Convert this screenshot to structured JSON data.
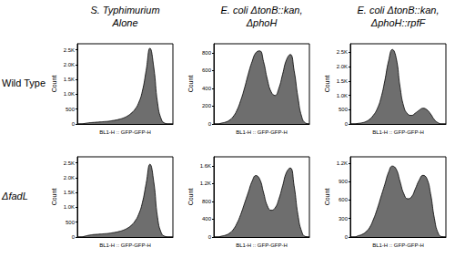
{
  "column_titles": [
    [
      "S. Typhimurium",
      "Alone"
    ],
    [
      "E. coli ΔtonB::kan,",
      "ΔphoH"
    ],
    [
      "E. coli ΔtonB::kan,",
      "ΔphoH::rpfF"
    ]
  ],
  "row_labels": [
    "Wild Type",
    "ΔfadL"
  ],
  "chart_data": [
    {
      "type": "area",
      "color": "#6e6e6e",
      "xlabel": "BL1-H :: GFP-GFP-H",
      "ylabel": "Count",
      "tick_labels": "y",
      "x": [
        0,
        4,
        8,
        12,
        16,
        20,
        24,
        28,
        32,
        36,
        40,
        44,
        48,
        52,
        56,
        60,
        64,
        68,
        72,
        76,
        80,
        84,
        88,
        92,
        96,
        100
      ],
      "values": [
        0,
        0,
        20,
        40,
        50,
        60,
        70,
        80,
        90,
        110,
        130,
        160,
        200,
        260,
        350,
        480,
        700,
        1100,
        1800,
        2550,
        1900,
        700,
        150,
        20,
        0,
        0
      ],
      "xlim": [
        0,
        100
      ],
      "ylim": [
        0,
        2700
      ],
      "yticks": [
        0,
        500,
        {
          "value": 1000,
          "label": "1.0K"
        },
        {
          "value": 1500,
          "label": "1.5K"
        },
        {
          "value": 2000,
          "label": "2.0K"
        },
        {
          "value": 2500,
          "label": "2.5K"
        }
      ]
    },
    {
      "type": "area",
      "color": "#6e6e6e",
      "xlabel": "BL1-H :: GFP-GFP-H",
      "ylabel": "Count",
      "tick_labels": "y",
      "x": [
        0,
        4,
        8,
        12,
        16,
        20,
        24,
        28,
        32,
        36,
        40,
        44,
        48,
        52,
        56,
        60,
        64,
        68,
        72,
        76,
        80,
        84,
        88,
        92,
        96,
        100
      ],
      "values": [
        0,
        0,
        10,
        20,
        40,
        80,
        150,
        260,
        400,
        560,
        700,
        800,
        820,
        700,
        500,
        360,
        320,
        400,
        560,
        720,
        780,
        600,
        300,
        80,
        10,
        0
      ],
      "xlim": [
        0,
        100
      ],
      "ylim": [
        0,
        900
      ],
      "yticks": [
        0,
        200,
        400,
        600,
        800
      ]
    },
    {
      "type": "area",
      "color": "#6e6e6e",
      "xlabel": "BL1-H :: GFP-GFP-H",
      "ylabel": "Count",
      "tick_labels": "y",
      "x": [
        0,
        4,
        8,
        12,
        16,
        20,
        24,
        28,
        32,
        36,
        40,
        44,
        48,
        52,
        56,
        60,
        64,
        68,
        72,
        76,
        80,
        84,
        88,
        92,
        96,
        100
      ],
      "values": [
        0,
        0,
        20,
        40,
        80,
        160,
        300,
        520,
        900,
        1500,
        2200,
        2600,
        2300,
        1300,
        600,
        350,
        300,
        380,
        480,
        550,
        500,
        350,
        150,
        40,
        0,
        0
      ],
      "xlim": [
        0,
        100
      ],
      "ylim": [
        0,
        2800
      ],
      "yticks": [
        0,
        500,
        {
          "value": 1000,
          "label": "1.0K"
        },
        {
          "value": 1500,
          "label": "1.5K"
        },
        {
          "value": 2000,
          "label": "2.0K"
        },
        {
          "value": 2500,
          "label": "2.5K"
        }
      ]
    },
    {
      "type": "area",
      "color": "#6e6e6e",
      "xlabel": "BL1-H :: GFP-GFP-H",
      "ylabel": "Count",
      "tick_labels": "y",
      "x": [
        0,
        4,
        8,
        12,
        16,
        20,
        24,
        28,
        32,
        36,
        40,
        44,
        48,
        52,
        56,
        60,
        64,
        68,
        72,
        76,
        80,
        84,
        88,
        92,
        96,
        100
      ],
      "values": [
        0,
        0,
        30,
        60,
        80,
        90,
        100,
        110,
        120,
        140,
        160,
        190,
        230,
        290,
        380,
        520,
        750,
        1150,
        1800,
        2450,
        1850,
        650,
        130,
        20,
        0,
        0
      ],
      "xlim": [
        0,
        100
      ],
      "ylim": [
        0,
        2700
      ],
      "yticks": [
        0,
        500,
        {
          "value": 1000,
          "label": "1.0K"
        },
        {
          "value": 1500,
          "label": "1.5K"
        },
        {
          "value": 2000,
          "label": "2.0K"
        },
        {
          "value": 2500,
          "label": "2.5K"
        }
      ]
    },
    {
      "type": "area",
      "color": "#6e6e6e",
      "xlabel": "BL1-H :: GFP-GFP-H",
      "ylabel": "Count",
      "tick_labels": "y",
      "x": [
        0,
        4,
        8,
        12,
        16,
        20,
        24,
        28,
        32,
        36,
        40,
        44,
        48,
        52,
        56,
        60,
        64,
        68,
        72,
        76,
        80,
        84,
        88,
        92,
        96,
        100
      ],
      "values": [
        0,
        0,
        20,
        40,
        80,
        160,
        300,
        500,
        750,
        1000,
        1250,
        1380,
        1300,
        1000,
        700,
        600,
        650,
        850,
        1150,
        1450,
        1550,
        1150,
        500,
        120,
        10,
        0
      ],
      "xlim": [
        0,
        100
      ],
      "ylim": [
        0,
        1800
      ],
      "yticks": [
        0,
        400,
        800,
        {
          "value": 1200,
          "label": "1.2K"
        },
        {
          "value": 1600,
          "label": "1.6K"
        }
      ]
    },
    {
      "type": "area",
      "color": "#6e6e6e",
      "xlabel": "BL1-H :: GFP-GFP-H",
      "ylabel": "Count",
      "tick_labels": "y",
      "x": [
        0,
        4,
        8,
        12,
        16,
        20,
        24,
        28,
        32,
        36,
        40,
        44,
        48,
        52,
        56,
        60,
        64,
        68,
        72,
        76,
        80,
        84,
        88,
        92,
        96,
        100
      ],
      "values": [
        0,
        0,
        20,
        40,
        80,
        150,
        280,
        450,
        650,
        850,
        1050,
        1150,
        1100,
        900,
        700,
        620,
        650,
        780,
        920,
        1000,
        950,
        700,
        300,
        60,
        5,
        0
      ],
      "xlim": [
        0,
        100
      ],
      "ylim": [
        0,
        1300
      ],
      "yticks": [
        0,
        300,
        600,
        900,
        {
          "value": 1200,
          "label": "1.2K"
        }
      ]
    }
  ]
}
